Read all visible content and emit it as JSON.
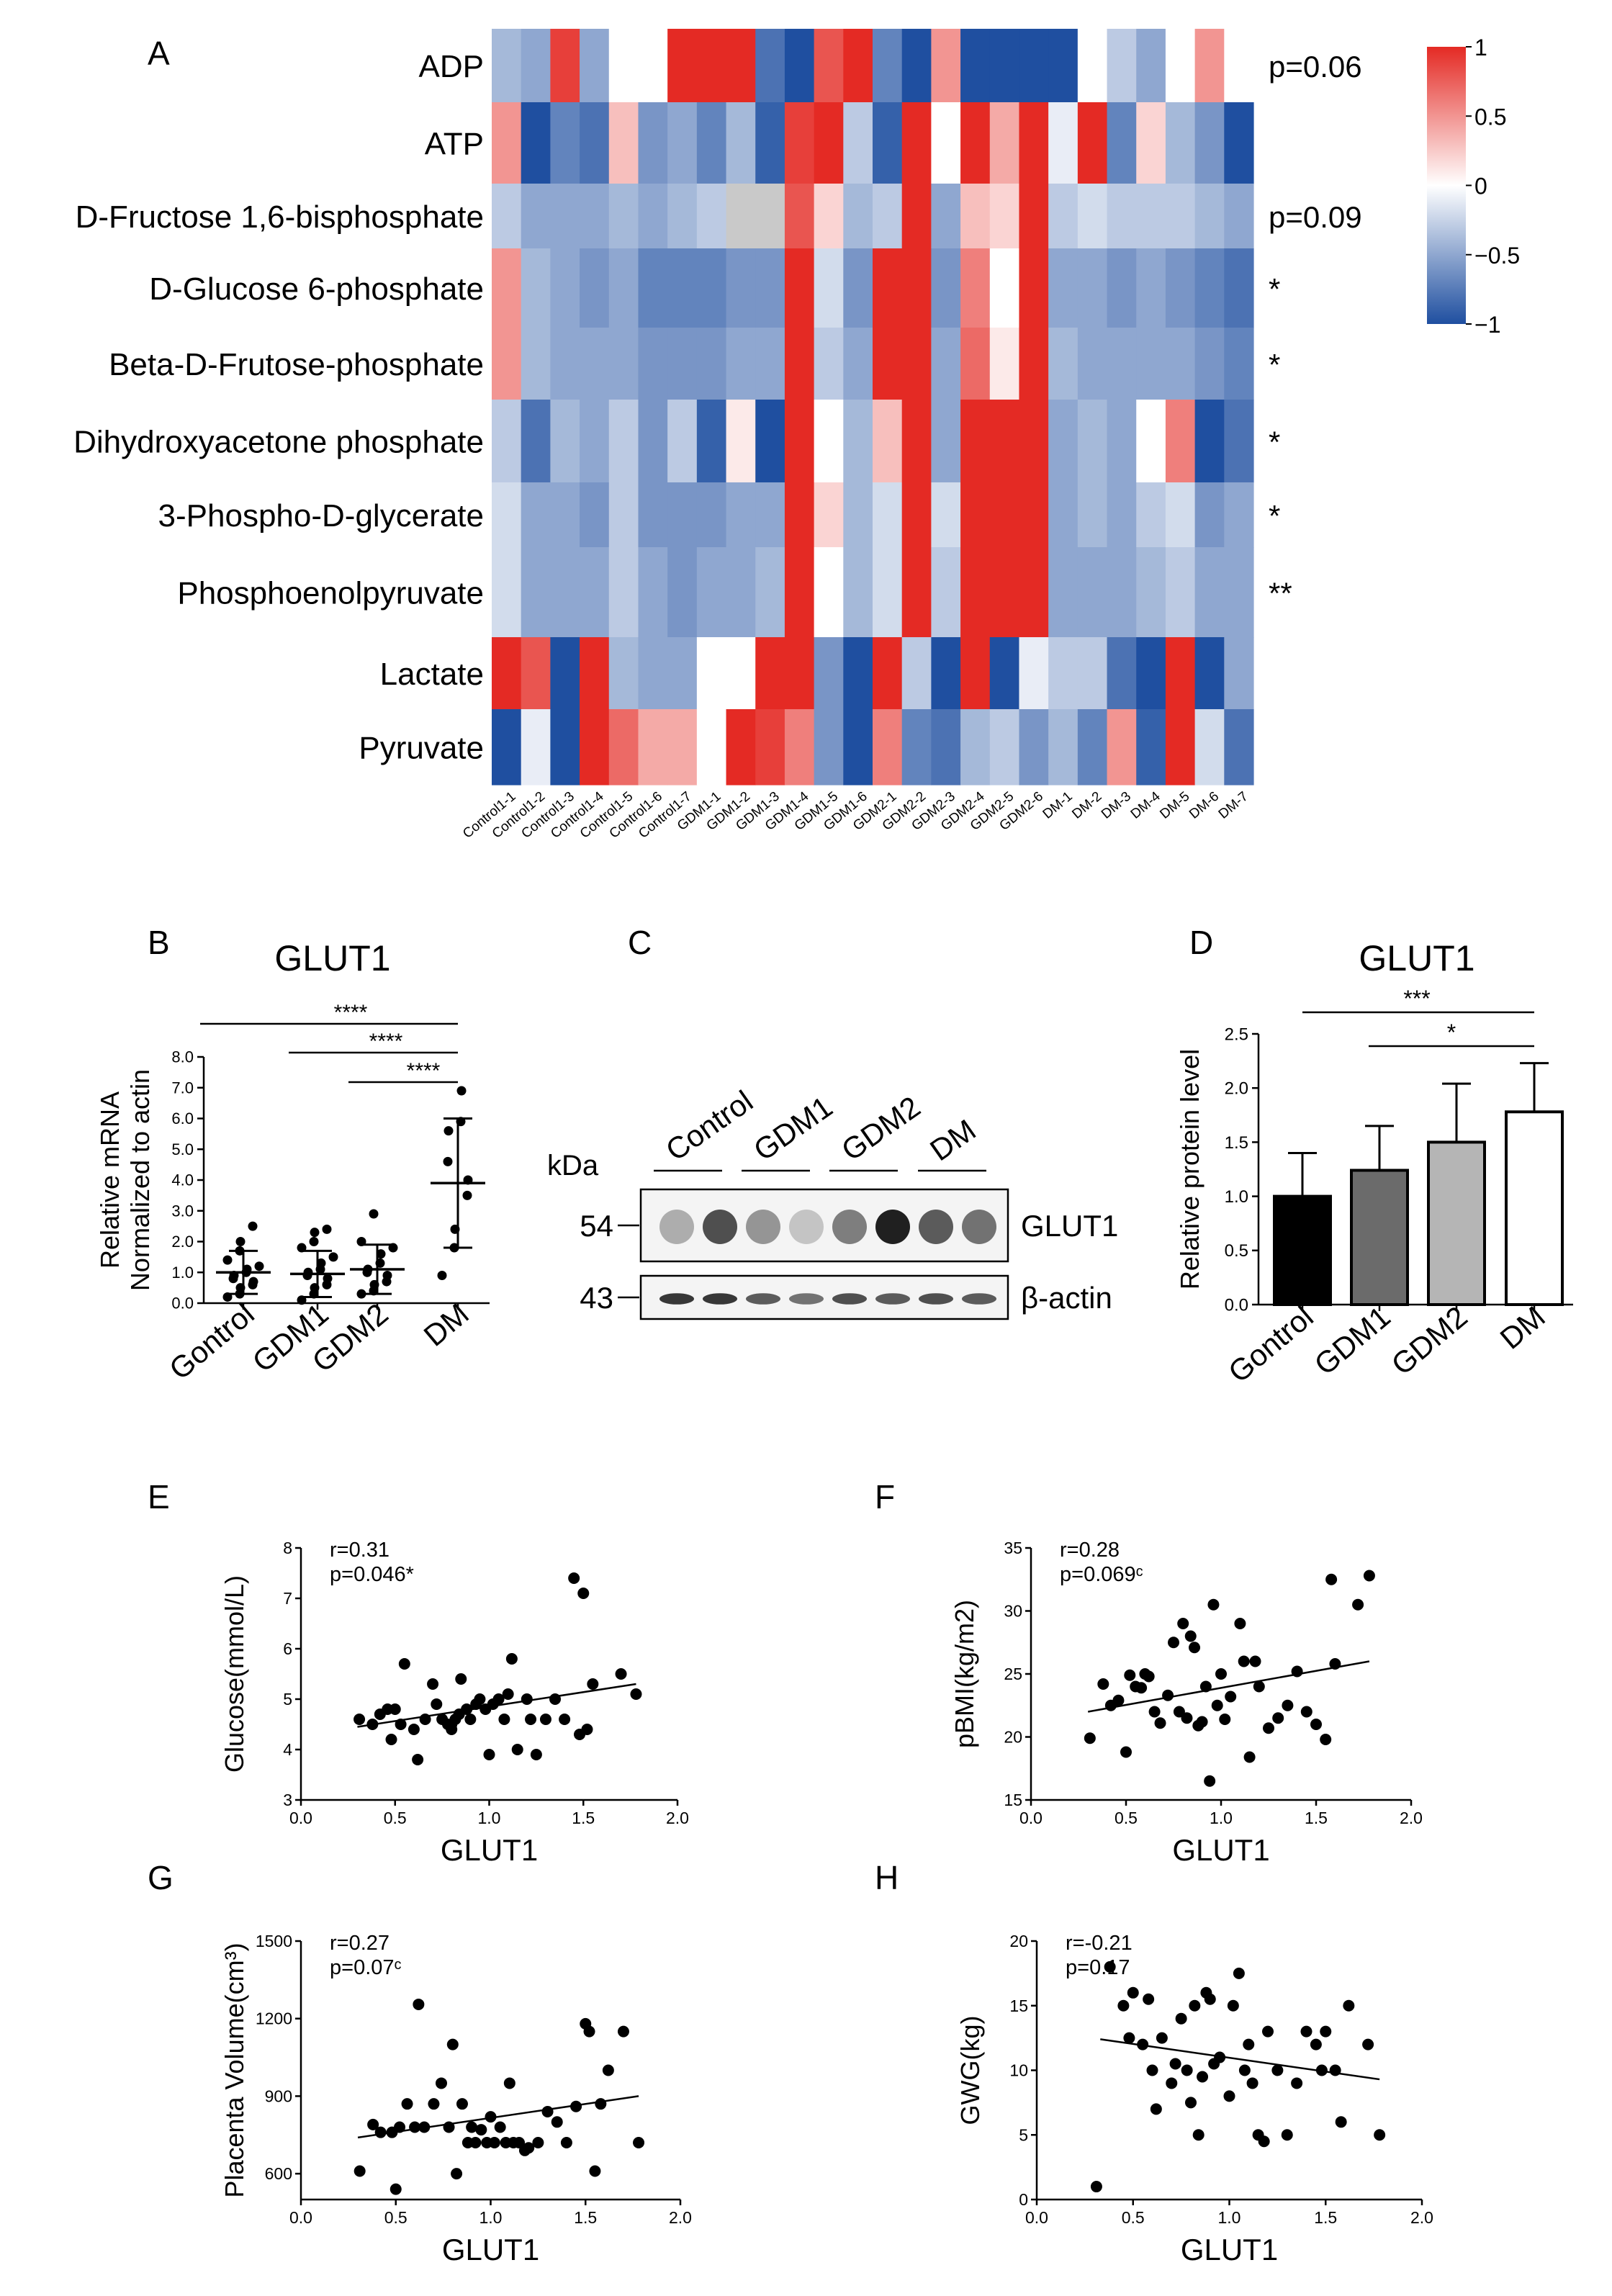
{
  "panel_letters": {
    "A": "A",
    "B": "B",
    "C": "C",
    "D": "D",
    "E": "E",
    "F": "F",
    "G": "G",
    "H": "H"
  },
  "colors": {
    "high": "#e42a24",
    "mid": "#ffffff",
    "low": "#1f4fa0",
    "bar_control": "#000000",
    "bar_gdm1": "#6b6b6b",
    "bar_gdm2": "#b5b5b5",
    "bar_dm": "#ffffff"
  },
  "chart_data": [
    {
      "id": "A",
      "type": "heatmap",
      "rows": [
        "ADP",
        "ATP",
        "D-Fructose 1,6-bisphosphate",
        "D-Glucose 6-phosphate",
        "Beta-D-Frutose-phosphate",
        "Dihydroxyacetone phosphate",
        "3-Phospho-D-glycerate",
        "Phosphoenolpyruvate",
        "Lactate",
        "Pyruvate"
      ],
      "row_annotations": [
        "p=0.06",
        "",
        "p=0.09",
        "*",
        "*",
        "*",
        "*",
        "**",
        "",
        ""
      ],
      "columns": [
        "Control1-1",
        "Control1-2",
        "Control1-3",
        "Control1-4",
        "Control1-5",
        "Control1-6",
        "Control1-7",
        "GDM1-1",
        "GDM1-2",
        "GDM1-3",
        "GDM1-4",
        "GDM1-5",
        "GDM1-6",
        "GDM2-1",
        "GDM2-2",
        "GDM2-3",
        "GDM2-4",
        "GDM2-5",
        "GDM2-6",
        "DM-1",
        "DM-2",
        "DM-3",
        "DM-4",
        "DM-5",
        "DM-6",
        "DM-7"
      ],
      "colorbar": {
        "ticks": [
          1,
          0.5,
          0,
          -0.5,
          -1
        ],
        "tick_labels": [
          "1",
          "0.5",
          "0",
          "−0.5",
          "−1"
        ],
        "range": [
          -1,
          1
        ]
      },
      "values": [
        [
          -0.4,
          -0.5,
          0.9,
          -0.5,
          0.0,
          0.0,
          1,
          1,
          1,
          -0.8,
          -1,
          0.8,
          1,
          -0.7,
          -1,
          0.5,
          -1,
          -1,
          -1,
          -1,
          0.0,
          -0.3,
          -0.5,
          0.0,
          0.5,
          0.0
        ],
        [
          0.5,
          -1,
          -0.7,
          -0.8,
          0.3,
          -0.6,
          -0.5,
          -0.7,
          -0.4,
          -0.9,
          0.9,
          1,
          -0.3,
          -0.9,
          1,
          0.0,
          1,
          0.4,
          1,
          -0.1,
          1,
          -0.7,
          0.2,
          -0.4,
          -0.6,
          -1
        ],
        [
          -0.3,
          -0.5,
          -0.5,
          -0.5,
          -0.4,
          -0.5,
          -0.4,
          -0.3,
          "na",
          "na",
          0.8,
          0.2,
          -0.4,
          -0.3,
          1,
          -0.5,
          0.3,
          0.2,
          1,
          -0.3,
          -0.2,
          -0.3,
          -0.3,
          -0.3,
          -0.4,
          -0.5
        ],
        [
          0.5,
          -0.4,
          -0.5,
          -0.6,
          -0.5,
          -0.7,
          -0.7,
          -0.7,
          -0.6,
          -0.6,
          1,
          -0.2,
          -0.6,
          1,
          1,
          -0.6,
          0.6,
          0.0,
          1,
          -0.5,
          -0.5,
          -0.6,
          -0.5,
          -0.6,
          -0.7,
          -0.8
        ],
        [
          0.5,
          -0.4,
          -0.5,
          -0.5,
          -0.5,
          -0.6,
          -0.6,
          -0.6,
          -0.5,
          -0.5,
          1,
          -0.3,
          -0.5,
          1,
          1,
          -0.5,
          0.7,
          0.1,
          1,
          -0.4,
          -0.5,
          -0.5,
          -0.5,
          -0.5,
          -0.6,
          -0.7
        ],
        [
          -0.3,
          -0.8,
          -0.4,
          -0.5,
          -0.3,
          -0.6,
          -0.3,
          -0.9,
          0.1,
          -1,
          1,
          0.0,
          -0.4,
          0.3,
          1,
          -0.5,
          1,
          1,
          1,
          -0.5,
          -0.4,
          -0.5,
          0.0,
          0.6,
          -1,
          -0.8
        ],
        [
          -0.2,
          -0.5,
          -0.5,
          -0.6,
          -0.3,
          -0.6,
          -0.6,
          -0.6,
          -0.5,
          -0.5,
          1,
          0.2,
          -0.4,
          -0.2,
          1,
          -0.2,
          1,
          1,
          1,
          -0.5,
          -0.4,
          -0.5,
          -0.3,
          -0.2,
          -0.6,
          -0.5
        ],
        [
          -0.2,
          -0.5,
          -0.5,
          -0.5,
          -0.3,
          -0.5,
          -0.6,
          -0.5,
          -0.5,
          -0.4,
          1,
          0.0,
          -0.4,
          -0.2,
          1,
          -0.3,
          1,
          1,
          1,
          -0.5,
          -0.5,
          -0.5,
          -0.4,
          -0.3,
          -0.5,
          -0.5
        ],
        [
          1,
          0.8,
          -1,
          1,
          -0.4,
          -0.5,
          -0.5,
          0.0,
          0.0,
          1,
          1,
          -0.6,
          -1,
          1,
          -0.3,
          -1,
          1,
          -1,
          -0.1,
          -0.3,
          -0.3,
          -0.8,
          -1,
          1,
          -1,
          -0.5
        ],
        [
          -1,
          -0.1,
          -1,
          1,
          0.7,
          0.4,
          0.4,
          0.0,
          1,
          0.9,
          0.6,
          -0.6,
          -1,
          0.6,
          -0.7,
          -0.8,
          -0.4,
          -0.3,
          -0.6,
          -0.4,
          -0.7,
          0.5,
          -0.9,
          1,
          -0.2,
          -0.8
        ]
      ]
    },
    {
      "id": "B",
      "type": "scatter",
      "title": "GLUT1",
      "ylabel_lines": [
        "Relative mRNA",
        "Normalized to actin"
      ],
      "categories": [
        "Gontrol",
        "GDM1",
        "GDM2",
        "DM"
      ],
      "ylim": [
        0,
        8
      ],
      "yticks": [
        0,
        1,
        2,
        3,
        4,
        5,
        6,
        7,
        8
      ],
      "ytick_labels": [
        "0.0",
        "1.0",
        "2.0",
        "3.0",
        "4.0",
        "5.0",
        "6.0",
        "7.0",
        "8.0"
      ],
      "points": [
        [
          0.2,
          0.3,
          0.5,
          0.6,
          0.7,
          0.8,
          0.9,
          1.0,
          1.1,
          1.2,
          1.4,
          1.7,
          2.0,
          2.5
        ],
        [
          0.1,
          0.3,
          0.5,
          0.6,
          0.8,
          0.9,
          1.0,
          1.1,
          1.3,
          1.5,
          1.8,
          2.0,
          2.3,
          2.4
        ],
        [
          0.3,
          0.4,
          0.6,
          0.7,
          0.9,
          1.0,
          1.1,
          1.3,
          1.6,
          1.8,
          2.0,
          2.9
        ],
        [
          0.9,
          1.8,
          2.4,
          3.5,
          4.0,
          4.6,
          5.6,
          5.9,
          6.9
        ]
      ],
      "means": [
        1.0,
        0.95,
        1.1,
        3.9
      ],
      "errors": [
        [
          0.3,
          1.7
        ],
        [
          0.2,
          1.7
        ],
        [
          0.3,
          1.9
        ],
        [
          1.8,
          6.0
        ]
      ],
      "significance": [
        {
          "from": 0,
          "to": 3,
          "label": "****"
        },
        {
          "from": 1,
          "to": 3,
          "label": "****"
        },
        {
          "from": 2,
          "to": 3,
          "label": "****"
        }
      ]
    },
    {
      "id": "C",
      "type": "blot",
      "group_labels": [
        "Control",
        "GDM1",
        "GDM2",
        "DM"
      ],
      "kda_label": "kDa",
      "bands": [
        {
          "name": "GLUT1",
          "marker": "54",
          "intensities": [
            0.35,
            0.75,
            0.45,
            0.25,
            0.55,
            0.95,
            0.7,
            0.6
          ]
        },
        {
          "name": "β-actin",
          "marker": "43",
          "intensities": [
            0.85,
            0.85,
            0.7,
            0.6,
            0.75,
            0.7,
            0.75,
            0.7
          ]
        }
      ]
    },
    {
      "id": "D",
      "type": "bar",
      "title": "GLUT1",
      "ylabel": "Relative protein level",
      "categories": [
        "Gontrol",
        "GDM1",
        "GDM2",
        "DM"
      ],
      "values": [
        1.0,
        1.24,
        1.5,
        1.78
      ],
      "errors": [
        0.4,
        0.41,
        0.54,
        0.45
      ],
      "ylim": [
        0,
        2.5
      ],
      "yticks": [
        0,
        0.5,
        1.0,
        1.5,
        2.0,
        2.5
      ],
      "ytick_labels": [
        "0.0",
        "0.5",
        "1.0",
        "1.5",
        "2.0",
        "2.5"
      ],
      "significance": [
        {
          "from": 0,
          "to": 3,
          "label": "***"
        },
        {
          "from": 1,
          "to": 3,
          "label": "*"
        }
      ]
    },
    {
      "id": "E",
      "type": "scatter",
      "xlabel": "GLUT1",
      "ylabel": "Glucose(mmol/L)",
      "annotation": [
        "r=0.31",
        "p=0.046*"
      ],
      "xlim": [
        0,
        2
      ],
      "ylim": [
        3,
        8
      ],
      "xticks": [
        0,
        0.5,
        1,
        1.5,
        2
      ],
      "xtick_labels": [
        "0.0",
        "0.5",
        "1.0",
        "1.5",
        "2.0"
      ],
      "yticks": [
        3,
        4,
        5,
        6,
        7,
        8
      ],
      "ytick_labels": [
        "3",
        "4",
        "5",
        "6",
        "7",
        "8"
      ],
      "fit": [
        [
          0.3,
          4.45
        ],
        [
          1.78,
          5.3
        ]
      ],
      "x": [
        0.31,
        0.38,
        0.42,
        0.46,
        0.48,
        0.5,
        0.53,
        0.55,
        0.6,
        0.62,
        0.66,
        0.7,
        0.72,
        0.75,
        0.78,
        0.8,
        0.8,
        0.82,
        0.84,
        0.85,
        0.88,
        0.9,
        0.93,
        0.95,
        0.98,
        1.0,
        1.02,
        1.05,
        1.08,
        1.1,
        1.12,
        1.15,
        1.2,
        1.22,
        1.25,
        1.3,
        1.35,
        1.4,
        1.45,
        1.48,
        1.5,
        1.52,
        1.55,
        1.7,
        1.78
      ],
      "y": [
        4.6,
        4.5,
        4.7,
        4.8,
        4.2,
        4.8,
        4.5,
        5.7,
        4.4,
        3.8,
        4.6,
        5.3,
        4.9,
        4.6,
        4.5,
        4.4,
        4.5,
        4.6,
        4.7,
        5.4,
        4.8,
        4.6,
        4.9,
        5.0,
        4.8,
        3.9,
        4.9,
        5.0,
        4.6,
        5.1,
        5.8,
        4.0,
        5.0,
        4.6,
        3.9,
        4.6,
        5.0,
        4.6,
        7.4,
        4.3,
        7.1,
        4.4,
        5.3,
        5.5,
        5.1
      ]
    },
    {
      "id": "F",
      "type": "scatter",
      "xlabel": "GLUT1",
      "ylabel": "pBMI(kg/m2)",
      "annotation": [
        "r=0.28",
        "p=0.069ᶜ"
      ],
      "xlim": [
        0,
        2
      ],
      "ylim": [
        15,
        35
      ],
      "xticks": [
        0,
        0.5,
        1,
        1.5,
        2
      ],
      "xtick_labels": [
        "0.0",
        "0.5",
        "1.0",
        "1.5",
        "2.0"
      ],
      "yticks": [
        15,
        20,
        25,
        30,
        35
      ],
      "ytick_labels": [
        "15",
        "20",
        "25",
        "30",
        "35"
      ],
      "fit": [
        [
          0.3,
          22.0
        ],
        [
          1.78,
          26.0
        ]
      ],
      "x": [
        0.31,
        0.38,
        0.42,
        0.46,
        0.5,
        0.52,
        0.55,
        0.58,
        0.6,
        0.62,
        0.65,
        0.68,
        0.72,
        0.75,
        0.78,
        0.8,
        0.82,
        0.84,
        0.86,
        0.88,
        0.9,
        0.92,
        0.94,
        0.96,
        0.98,
        1.0,
        1.02,
        1.05,
        1.1,
        1.12,
        1.15,
        1.18,
        1.2,
        1.25,
        1.3,
        1.35,
        1.4,
        1.45,
        1.5,
        1.55,
        1.58,
        1.6,
        1.72,
        1.78
      ],
      "y": [
        19.9,
        24.2,
        22.5,
        22.9,
        18.8,
        24.9,
        24.0,
        23.9,
        25.0,
        24.8,
        22.0,
        21.1,
        23.3,
        27.5,
        22.0,
        29.0,
        21.5,
        28.0,
        27.1,
        20.9,
        21.2,
        24.0,
        16.5,
        30.5,
        22.5,
        25.0,
        21.4,
        23.2,
        29.0,
        26.0,
        18.4,
        26.0,
        24.0,
        20.7,
        21.5,
        22.5,
        25.2,
        22.0,
        21.0,
        19.8,
        32.5,
        25.8,
        30.5,
        32.8
      ]
    },
    {
      "id": "G",
      "type": "scatter",
      "xlabel": "GLUT1",
      "ylabel": "Placenta Volume(cm³)",
      "annotation": [
        "r=0.27",
        "p=0.07ᶜ"
      ],
      "xlim": [
        0,
        2
      ],
      "ylim": [
        500,
        1500
      ],
      "xticks": [
        0,
        0.5,
        1,
        1.5,
        2
      ],
      "xtick_labels": [
        "0.0",
        "0.5",
        "1.0",
        "1.5",
        "2.0"
      ],
      "yticks": [
        600,
        900,
        1200,
        1500
      ],
      "ytick_labels": [
        "600",
        "900",
        "1200",
        "1500"
      ],
      "fit": [
        [
          0.3,
          740
        ],
        [
          1.78,
          900
        ]
      ],
      "x": [
        0.31,
        0.38,
        0.42,
        0.48,
        0.5,
        0.52,
        0.56,
        0.6,
        0.62,
        0.65,
        0.7,
        0.74,
        0.78,
        0.8,
        0.82,
        0.85,
        0.88,
        0.9,
        0.92,
        0.95,
        0.98,
        1.0,
        1.02,
        1.05,
        1.08,
        1.1,
        1.12,
        1.15,
        1.18,
        1.2,
        1.25,
        1.3,
        1.35,
        1.4,
        1.45,
        1.5,
        1.52,
        1.55,
        1.58,
        1.62,
        1.7,
        1.78
      ],
      "y": [
        610,
        790,
        760,
        760,
        540,
        780,
        870,
        780,
        1255,
        780,
        870,
        950,
        780,
        1100,
        600,
        870,
        720,
        780,
        720,
        770,
        720,
        820,
        720,
        780,
        720,
        950,
        720,
        720,
        690,
        700,
        720,
        840,
        800,
        720,
        860,
        1180,
        1150,
        610,
        870,
        1000,
        1150,
        720
      ]
    },
    {
      "id": "H",
      "type": "scatter",
      "xlabel": "GLUT1",
      "ylabel": "GWG(kg)",
      "annotation": [
        "r=-0.21",
        "p=0.17"
      ],
      "xlim": [
        0,
        2
      ],
      "ylim": [
        0,
        20
      ],
      "xticks": [
        0,
        0.5,
        1,
        1.5,
        2
      ],
      "xtick_labels": [
        "0.0",
        "0.5",
        "1.0",
        "1.5",
        "2.0"
      ],
      "yticks": [
        0,
        5,
        10,
        15,
        20
      ],
      "ytick_labels": [
        "0",
        "5",
        "10",
        "15",
        "20"
      ],
      "fit": [
        [
          0.33,
          12.4
        ],
        [
          1.78,
          9.3
        ]
      ],
      "x": [
        0.31,
        0.38,
        0.45,
        0.48,
        0.5,
        0.55,
        0.58,
        0.6,
        0.62,
        0.65,
        0.7,
        0.72,
        0.75,
        0.78,
        0.8,
        0.82,
        0.84,
        0.86,
        0.88,
        0.9,
        0.92,
        0.95,
        1.0,
        1.02,
        1.05,
        1.08,
        1.1,
        1.12,
        1.15,
        1.18,
        1.2,
        1.25,
        1.3,
        1.35,
        1.4,
        1.45,
        1.48,
        1.5,
        1.55,
        1.58,
        1.62,
        1.72,
        1.78
      ],
      "y": [
        1,
        18,
        15,
        12.5,
        16,
        12,
        15.5,
        10,
        7,
        12.5,
        9,
        10.5,
        14,
        10,
        7.5,
        15,
        5,
        9.5,
        16,
        15.5,
        10.5,
        11,
        8,
        15,
        17.5,
        10,
        12,
        9,
        5,
        4.5,
        13,
        10,
        5,
        9,
        13,
        12,
        10,
        13,
        10,
        6,
        15,
        12,
        5
      ]
    }
  ]
}
